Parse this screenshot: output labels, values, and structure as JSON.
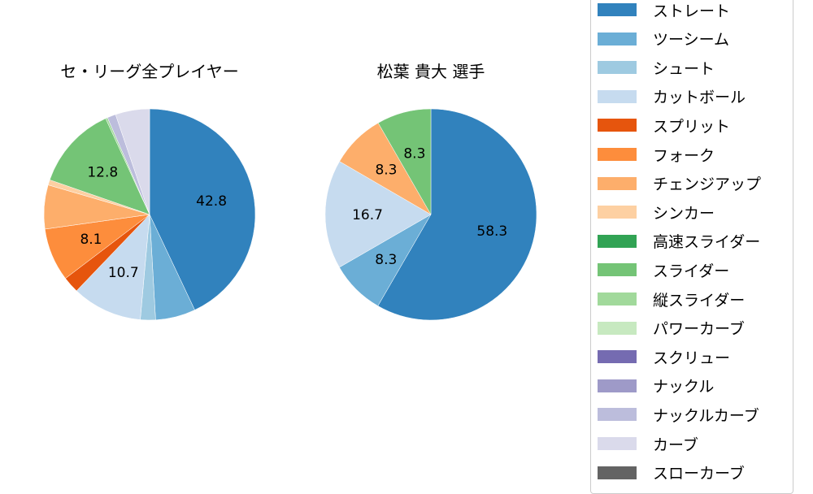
{
  "chart_data": [
    {
      "type": "pie",
      "title": "セ・リーグ全プレイヤー",
      "start_angle": 90,
      "direction": "clockwise",
      "labels": [
        "ストレート",
        "ツーシーム",
        "シュート",
        "カットボール",
        "スプリット",
        "フォーク",
        "チェンジアップ",
        "シンカー",
        "高速スライダー",
        "スライダー",
        "縦スライダー",
        "パワーカーブ",
        "スクリュー",
        "ナックル",
        "ナックルカーブ",
        "カーブ",
        "スローカーブ"
      ],
      "values": [
        42.8,
        6.1,
        2.3,
        10.7,
        2.5,
        8.1,
        6.7,
        0.8,
        0.0,
        12.8,
        0.3,
        0.0,
        0.0,
        0.0,
        1.3,
        5.2,
        0.0
      ],
      "shown_labels": {
        "ストレート": "42.8",
        "カットボール": "10.7",
        "フォーク": "8.1",
        "スライダー": "12.8"
      }
    },
    {
      "type": "pie",
      "title": "松葉 貴大  選手",
      "start_angle": 90,
      "direction": "clockwise",
      "labels": [
        "ストレート",
        "ツーシーム",
        "カットボール",
        "チェンジアップ",
        "スライダー"
      ],
      "values": [
        58.3,
        8.3,
        16.7,
        8.3,
        8.3
      ],
      "shown_labels": {
        "ストレート": "58.3",
        "ツーシーム": "8.3",
        "カットボール": "16.7",
        "チェンジアップ": "8.3",
        "スライダー": "8.3"
      }
    }
  ],
  "titles": [
    "セ・リーグ全プレイヤー",
    "松葉 貴大  選手"
  ],
  "legend": [
    {
      "label": "ストレート",
      "color": "#3182bd"
    },
    {
      "label": "ツーシーム",
      "color": "#6baed6"
    },
    {
      "label": "シュート",
      "color": "#9ecae1"
    },
    {
      "label": "カットボール",
      "color": "#c6dbef"
    },
    {
      "label": "スプリット",
      "color": "#e6550d"
    },
    {
      "label": "フォーク",
      "color": "#fd8d3c"
    },
    {
      "label": "チェンジアップ",
      "color": "#fdae6b"
    },
    {
      "label": "シンカー",
      "color": "#fdd0a2"
    },
    {
      "label": "高速スライダー",
      "color": "#31a354"
    },
    {
      "label": "スライダー",
      "color": "#74c476"
    },
    {
      "label": "縦スライダー",
      "color": "#a1d99b"
    },
    {
      "label": "パワーカーブ",
      "color": "#c7e9c0"
    },
    {
      "label": "スクリュー",
      "color": "#756bb1"
    },
    {
      "label": "ナックル",
      "color": "#9e9ac8"
    },
    {
      "label": "ナックルカーブ",
      "color": "#bcbddc"
    },
    {
      "label": "カーブ",
      "color": "#dadaeb"
    },
    {
      "label": "スローカーブ",
      "color": "#636363"
    }
  ]
}
